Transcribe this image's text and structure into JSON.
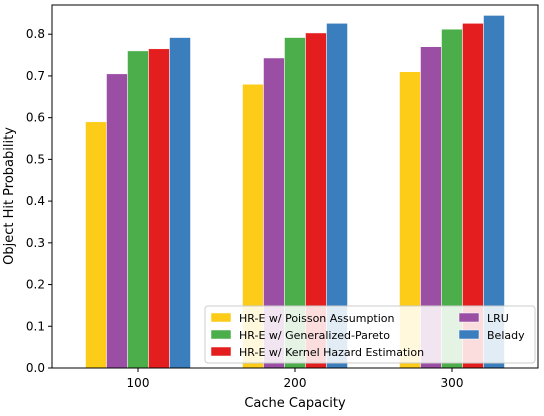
{
  "chart_data": {
    "type": "bar",
    "title": "",
    "xlabel": "Cache Capacity",
    "ylabel": "Object Hit Probability",
    "ylim": [
      0.0,
      0.87
    ],
    "yticks": [
      "0.0",
      "0.1",
      "0.2",
      "0.3",
      "0.4",
      "0.5",
      "0.6",
      "0.7",
      "0.8"
    ],
    "categories": [
      "100",
      "200",
      "300"
    ],
    "grid": false,
    "legend_position": "bottom-right",
    "series": [
      {
        "name": "HR-E w/ Poisson Assumption",
        "color": "#FCCC18",
        "values": [
          0.59,
          0.68,
          0.71
        ]
      },
      {
        "name": "LRU",
        "color": "#9A4FA4",
        "values": [
          0.705,
          0.743,
          0.77
        ]
      },
      {
        "name": "HR-E w/ Generalized-Pareto",
        "color": "#4BAE4A",
        "values": [
          0.76,
          0.792,
          0.812
        ]
      },
      {
        "name": "HR-E w/ Kernel Hazard Estimation",
        "color": "#E41E1E",
        "values": [
          0.765,
          0.803,
          0.826
        ]
      },
      {
        "name": "Belady",
        "color": "#3A7EBE",
        "values": [
          0.792,
          0.826,
          0.845
        ]
      }
    ],
    "legend": {
      "columns": [
        [
          "HR-E w/ Poisson Assumption",
          "HR-E w/ Generalized-Pareto",
          "HR-E w/ Kernel Hazard Estimation"
        ],
        [
          "LRU",
          "Belady"
        ]
      ]
    }
  }
}
